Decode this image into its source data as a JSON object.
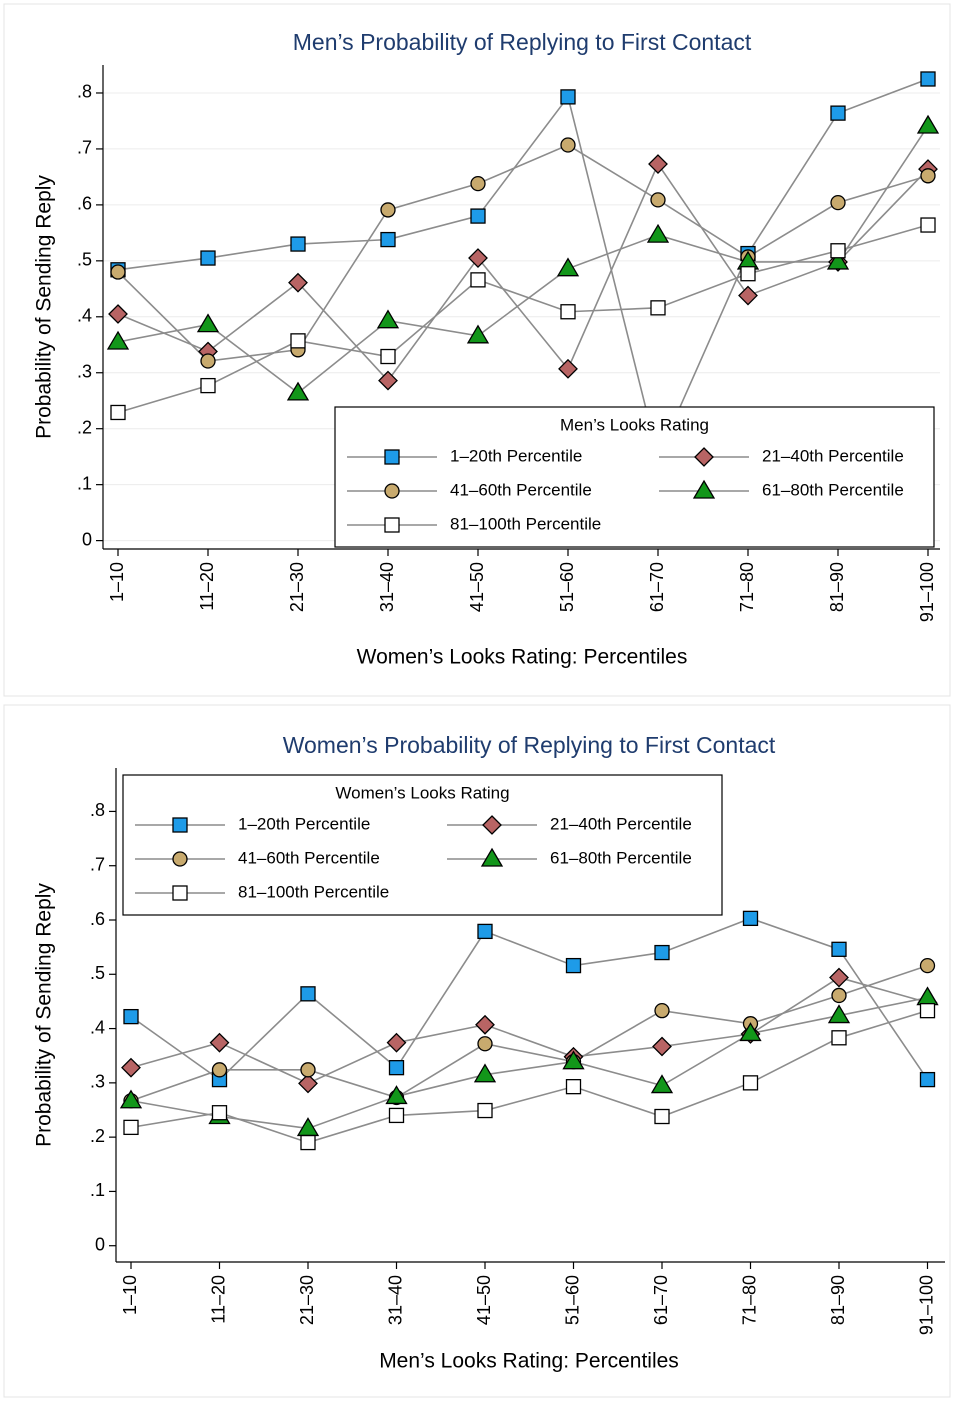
{
  "chart_data": [
    {
      "type": "line",
      "title": "Men’s Probability of Replying to First Contact",
      "x_label": "Women’s Looks Rating: Percentiles",
      "y_label": "Probability of Sending Reply",
      "legend_title": "Men’s Looks Rating",
      "legend_position": "lower right",
      "categories": [
        "1–10",
        "11–20",
        "21–30",
        "31–40",
        "41–50",
        "51–60",
        "61–70",
        "71–80",
        "81–90",
        "91–100"
      ],
      "ylim": [
        -0.015,
        0.85
      ],
      "yticks": [
        0,
        {
          "value": 0.1,
          "label": ".1"
        },
        {
          "value": 0.2,
          "label": ".2"
        },
        {
          "value": 0.3,
          "label": ".3"
        },
        {
          "value": 0.4,
          "label": ".4"
        },
        {
          "value": 0.5,
          "label": ".5"
        },
        {
          "value": 0.6,
          "label": ".6"
        },
        {
          "value": 0.7,
          "label": ".7"
        },
        {
          "value": 0.8,
          "label": ".8"
        }
      ],
      "grid": true,
      "line_color": "#8c8c8c",
      "series": [
        {
          "name": "1–20th Percentile",
          "color": "#1e9be8",
          "marker": "square",
          "values": [
            0.484,
            0.505,
            0.53,
            0.538,
            0.58,
            0.793,
            0.15,
            0.513,
            0.764,
            0.825
          ]
        },
        {
          "name": "21–40th Percentile",
          "color": "#b86464",
          "marker": "diamond",
          "values": [
            0.405,
            0.338,
            0.461,
            0.286,
            0.505,
            0.307,
            0.673,
            0.438,
            0.498,
            0.664
          ]
        },
        {
          "name": "41–60th Percentile",
          "color": "#c8aa6e",
          "marker": "circle",
          "values": [
            0.48,
            0.321,
            0.341,
            0.591,
            0.638,
            0.707,
            0.609,
            0.507,
            0.604,
            0.652
          ]
        },
        {
          "name": "61–80th Percentile",
          "color": "#12961a",
          "marker": "triangle",
          "values": [
            0.355,
            0.386,
            0.264,
            0.393,
            0.366,
            0.486,
            0.546,
            0.498,
            0.498,
            0.741
          ]
        },
        {
          "name": "81–100th Percentile",
          "color": "#ffffff",
          "marker": "square",
          "values": [
            0.229,
            0.277,
            0.357,
            0.329,
            0.466,
            0.409,
            0.416,
            0.477,
            0.518,
            0.564
          ]
        }
      ]
    },
    {
      "type": "line",
      "title": "Women’s Probability of Replying to First Contact",
      "x_label": "Men’s Looks Rating: Percentiles",
      "y_label": "Probability of Sending Reply",
      "legend_title": "Women’s Looks Rating",
      "legend_position": "upper left",
      "categories": [
        "1–10",
        "11–20",
        "21–30",
        "31–40",
        "41–50",
        "51–60",
        "61–70",
        "71–80",
        "81–90",
        "91–100"
      ],
      "ylim": [
        -0.03,
        0.88
      ],
      "yticks": [
        0,
        {
          "value": 0.1,
          "label": ".1"
        },
        {
          "value": 0.2,
          "label": ".2"
        },
        {
          "value": 0.3,
          "label": ".3"
        },
        {
          "value": 0.4,
          "label": ".4"
        },
        {
          "value": 0.5,
          "label": ".5"
        },
        {
          "value": 0.6,
          "label": ".6"
        },
        {
          "value": 0.7,
          "label": ".7"
        },
        {
          "value": 0.8,
          "label": ".8"
        }
      ],
      "grid": false,
      "line_color": "#8c8c8c",
      "series": [
        {
          "name": "1–20th Percentile",
          "color": "#1e9be8",
          "marker": "square",
          "values": [
            0.422,
            0.306,
            0.464,
            0.328,
            0.579,
            0.516,
            0.54,
            0.603,
            0.546,
            0.306
          ]
        },
        {
          "name": "21–40th Percentile",
          "color": "#b86464",
          "marker": "diamond",
          "values": [
            0.328,
            0.374,
            0.299,
            0.374,
            0.407,
            0.348,
            0.367,
            0.39,
            0.494,
            0.448
          ]
        },
        {
          "name": "41–60th Percentile",
          "color": "#c8aa6e",
          "marker": "circle",
          "values": [
            0.267,
            0.324,
            0.324,
            0.273,
            0.372,
            0.339,
            0.433,
            0.409,
            0.461,
            0.516
          ]
        },
        {
          "name": "61–80th Percentile",
          "color": "#12961a",
          "marker": "triangle",
          "values": [
            0.267,
            0.238,
            0.216,
            0.275,
            0.315,
            0.339,
            0.295,
            0.391,
            0.424,
            0.457
          ]
        },
        {
          "name": "81–100th Percentile",
          "color": "#ffffff",
          "marker": "square",
          "values": [
            0.218,
            0.245,
            0.19,
            0.24,
            0.249,
            0.293,
            0.238,
            0.3,
            0.383,
            0.433
          ]
        }
      ]
    }
  ]
}
